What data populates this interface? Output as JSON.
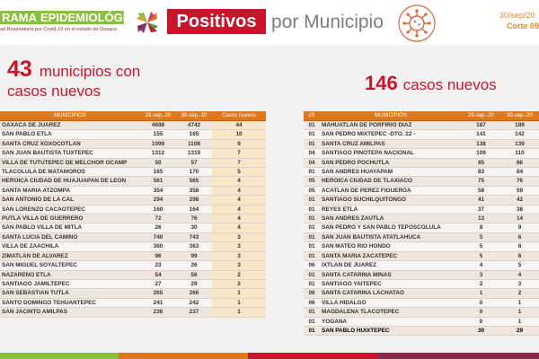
{
  "header": {
    "brand_a": "RAMA",
    "brand_b": "EPIDEMIOLÓGICO",
    "brand_sub": "ad Respiratoria por Covid-19 en el estado de Oaxaca",
    "title_box": "Positivos",
    "title_rest": "por Municipio",
    "date": "30/sep/20",
    "corte": "Corte 09",
    "colors": {
      "green": "#8bbf3f",
      "red": "#c8152b",
      "orange": "#e0781a"
    }
  },
  "left": {
    "count": "43",
    "line1": "municipios con",
    "line2": "casos nuevos",
    "headers": [
      "MUNICIPIOS",
      "29-sep.-20",
      "30-sep.-20",
      "Casos nuevos"
    ],
    "rows": [
      [
        "OAXACA DE JUAREZ",
        "4698",
        "4742",
        "44"
      ],
      [
        "SAN PABLO ETLA",
        "155",
        "165",
        "10"
      ],
      [
        "SANTA CRUZ XOXOCOTLAN",
        "1099",
        "1108",
        "9"
      ],
      [
        "SAN JUAN BAUTISTA TUXTEPEC",
        "1312",
        "1319",
        "7"
      ],
      [
        "VILLA DE TUTUTEPEC DE MELCHOR OCAMP",
        "50",
        "57",
        "7"
      ],
      [
        "TLACOLULA DE MATAMOROS",
        "165",
        "170",
        "5"
      ],
      [
        "HEROICA CIUDAD DE HUAJUAPAN DE LEON",
        "561",
        "565",
        "4"
      ],
      [
        "SANTA MARIA ATZOMPA",
        "354",
        "358",
        "4"
      ],
      [
        "SAN ANTONIO DE LA CAL",
        "294",
        "298",
        "4"
      ],
      [
        "SAN LORENZO CACAOTEPEC",
        "160",
        "164",
        "4"
      ],
      [
        "PUTLA VILLA DE GUERRERO",
        "72",
        "76",
        "4"
      ],
      [
        "SAN PABLO VILLA DE MITLA",
        "26",
        "30",
        "4"
      ],
      [
        "SANTA LUCIA DEL CAMINO",
        "740",
        "743",
        "3"
      ],
      [
        "VILLA DE ZAACHILA",
        "360",
        "363",
        "3"
      ],
      [
        "ZIMATLAN DE ALVAREZ",
        "96",
        "99",
        "3"
      ],
      [
        "SAN MIGUEL SOYALTEPEC",
        "23",
        "26",
        "3"
      ],
      [
        "NAZARENO ETLA",
        "54",
        "56",
        "2"
      ],
      [
        "SANTIAGO JAMILTEPEC",
        "27",
        "29",
        "2"
      ],
      [
        "SAN SEBASTIAN TUTLA",
        "265",
        "266",
        "1"
      ],
      [
        "SANTO DOMINGO TEHUANTEPEC",
        "241",
        "242",
        "1"
      ],
      [
        "SAN JACINTO AMILPAS",
        "236",
        "237",
        "1"
      ]
    ]
  },
  "right": {
    "count": "146",
    "label": "casos nuevos",
    "headers": [
      "JS",
      "MUNICIPIOS",
      "29-sep.-20",
      "30-sep.-20"
    ],
    "rows": [
      [
        "01",
        "MAHUATLAN DE PORFIRIO DIAZ",
        "187",
        "189"
      ],
      [
        "01",
        "SAN PEDRO MIXTEPEC -DTO. 22 -",
        "141",
        "142"
      ],
      [
        "01",
        "SANTA CRUZ AMILPAS",
        "138",
        "139"
      ],
      [
        "04",
        "SANTIAGO PINOTEPA NACIONAL",
        "109",
        "110"
      ],
      [
        "04",
        "SAN PEDRO POCHUTLA",
        "85",
        "86"
      ],
      [
        "01",
        "SAN ANDRES HUAYAPAM",
        "83",
        "84"
      ],
      [
        "05",
        "HEROICA CIUDAD DE TLAXIACO",
        "75",
        "76"
      ],
      [
        "05",
        "ACATLAN DE PEREZ FIGUEROA",
        "58",
        "59"
      ],
      [
        "01",
        "SANTIAGO SUCHILQUITONGO",
        "41",
        "42"
      ],
      [
        "01",
        "REYES ETLA",
        "37",
        "38"
      ],
      [
        "01",
        "SAN ANDRES ZAUTLA",
        "13",
        "14"
      ],
      [
        "01",
        "SAN PEDRO Y SAN PABLO TEPOSCOLULA",
        "8",
        "9"
      ],
      [
        "01",
        "SAN JUAN BAUTISTA ATATLAHUCA",
        "5",
        "6"
      ],
      [
        "01",
        "SAN MATEO RIO HONDO",
        "5",
        "6"
      ],
      [
        "01",
        "SANTA MARIA ZACATEPEC",
        "5",
        "6"
      ],
      [
        "06",
        "IXTLAN DE JUAREZ",
        "4",
        "5"
      ],
      [
        "01",
        "SANTA CATARINA MINAS",
        "3",
        "4"
      ],
      [
        "01",
        "SANTIAGO YAITEPEC",
        "2",
        "3"
      ],
      [
        "06",
        "SANTA CATARINA LACHATAO",
        "1",
        "2"
      ],
      [
        "06",
        "VILLA HIDALGO",
        "0",
        "1"
      ],
      [
        "01",
        "MAGDALENA TLACOTEPEC",
        "0",
        "1"
      ],
      [
        "01",
        "YOGANA",
        "0",
        "1"
      ],
      [
        "01",
        "SAN PABLO HUIXTEPEC",
        "30",
        "29"
      ]
    ]
  }
}
